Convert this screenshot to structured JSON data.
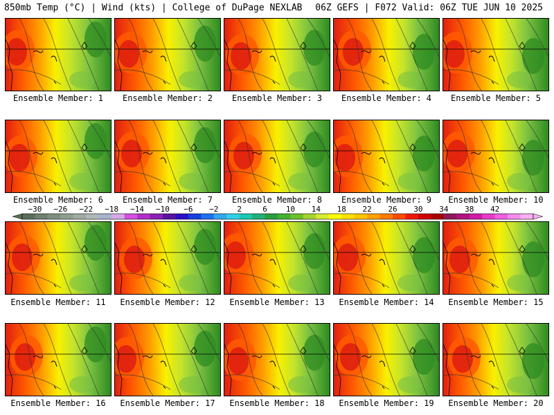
{
  "header": {
    "left_title": "850mb Temp (°C) | Wind (kts) | College of DuPage NEXLAB",
    "right_title": "06Z GEFS | F072 Valid: 06Z TUE JUN 10 2025"
  },
  "panels": [
    {
      "label": "Ensemble Member: 1"
    },
    {
      "label": "Ensemble Member: 2"
    },
    {
      "label": "Ensemble Member: 3"
    },
    {
      "label": "Ensemble Member: 4"
    },
    {
      "label": "Ensemble Member: 5"
    },
    {
      "label": "Ensemble Member: 6"
    },
    {
      "label": "Ensemble Member: 7"
    },
    {
      "label": "Ensemble Member: 8"
    },
    {
      "label": "Ensemble Member: 9"
    },
    {
      "label": "Ensemble Member: 10"
    },
    {
      "label": "Ensemble Member: 11"
    },
    {
      "label": "Ensemble Member: 12"
    },
    {
      "label": "Ensemble Member: 13"
    },
    {
      "label": "Ensemble Member: 14"
    },
    {
      "label": "Ensemble Member: 15"
    },
    {
      "label": "Ensemble Member: 16"
    },
    {
      "label": "Ensemble Member: 17"
    },
    {
      "label": "Ensemble Member: 18"
    },
    {
      "label": "Ensemble Member: 19"
    },
    {
      "label": "Ensemble Member: 20"
    }
  ],
  "colorbar": {
    "tick_labels": [
      "−30",
      "−26",
      "−22",
      "−18",
      "−14",
      "−10",
      "−6",
      "−2",
      "2",
      "6",
      "10",
      "14",
      "18",
      "22",
      "26",
      "30",
      "34",
      "38",
      "42"
    ],
    "colors": [
      "#5a6e5a",
      "#6e806e",
      "#7f8f7f",
      "#8f9f8f",
      "#a0aaa0",
      "#b0b8b8",
      "#a6b4cc",
      "#d7a8e8",
      "#d44fe0",
      "#b030c8",
      "#8c1fb4",
      "#5a14a0",
      "#2a10c8",
      "#1540e0",
      "#2070f0",
      "#30a8f0",
      "#30d0e8",
      "#18c8b4",
      "#20b078",
      "#2a9e3c",
      "#44b030",
      "#6cc02c",
      "#a4d430",
      "#d8ec30",
      "#ffff00",
      "#ffe000",
      "#ffc400",
      "#ffa000",
      "#ff7a00",
      "#ff4a00",
      "#f01800",
      "#d00000",
      "#a80000",
      "#8c1a5a",
      "#b0127e",
      "#d01ca8",
      "#e83cc8",
      "#f060e0",
      "#f58cec",
      "#f8b0f0"
    ]
  },
  "colors": {
    "cool": "#2e8b22",
    "mild": "#7cc242",
    "neutral": "#c4e42c",
    "warm": "#f8f000",
    "hot": "#ff9a00",
    "hotter": "#ff5a00",
    "hottest": "#e02010"
  }
}
